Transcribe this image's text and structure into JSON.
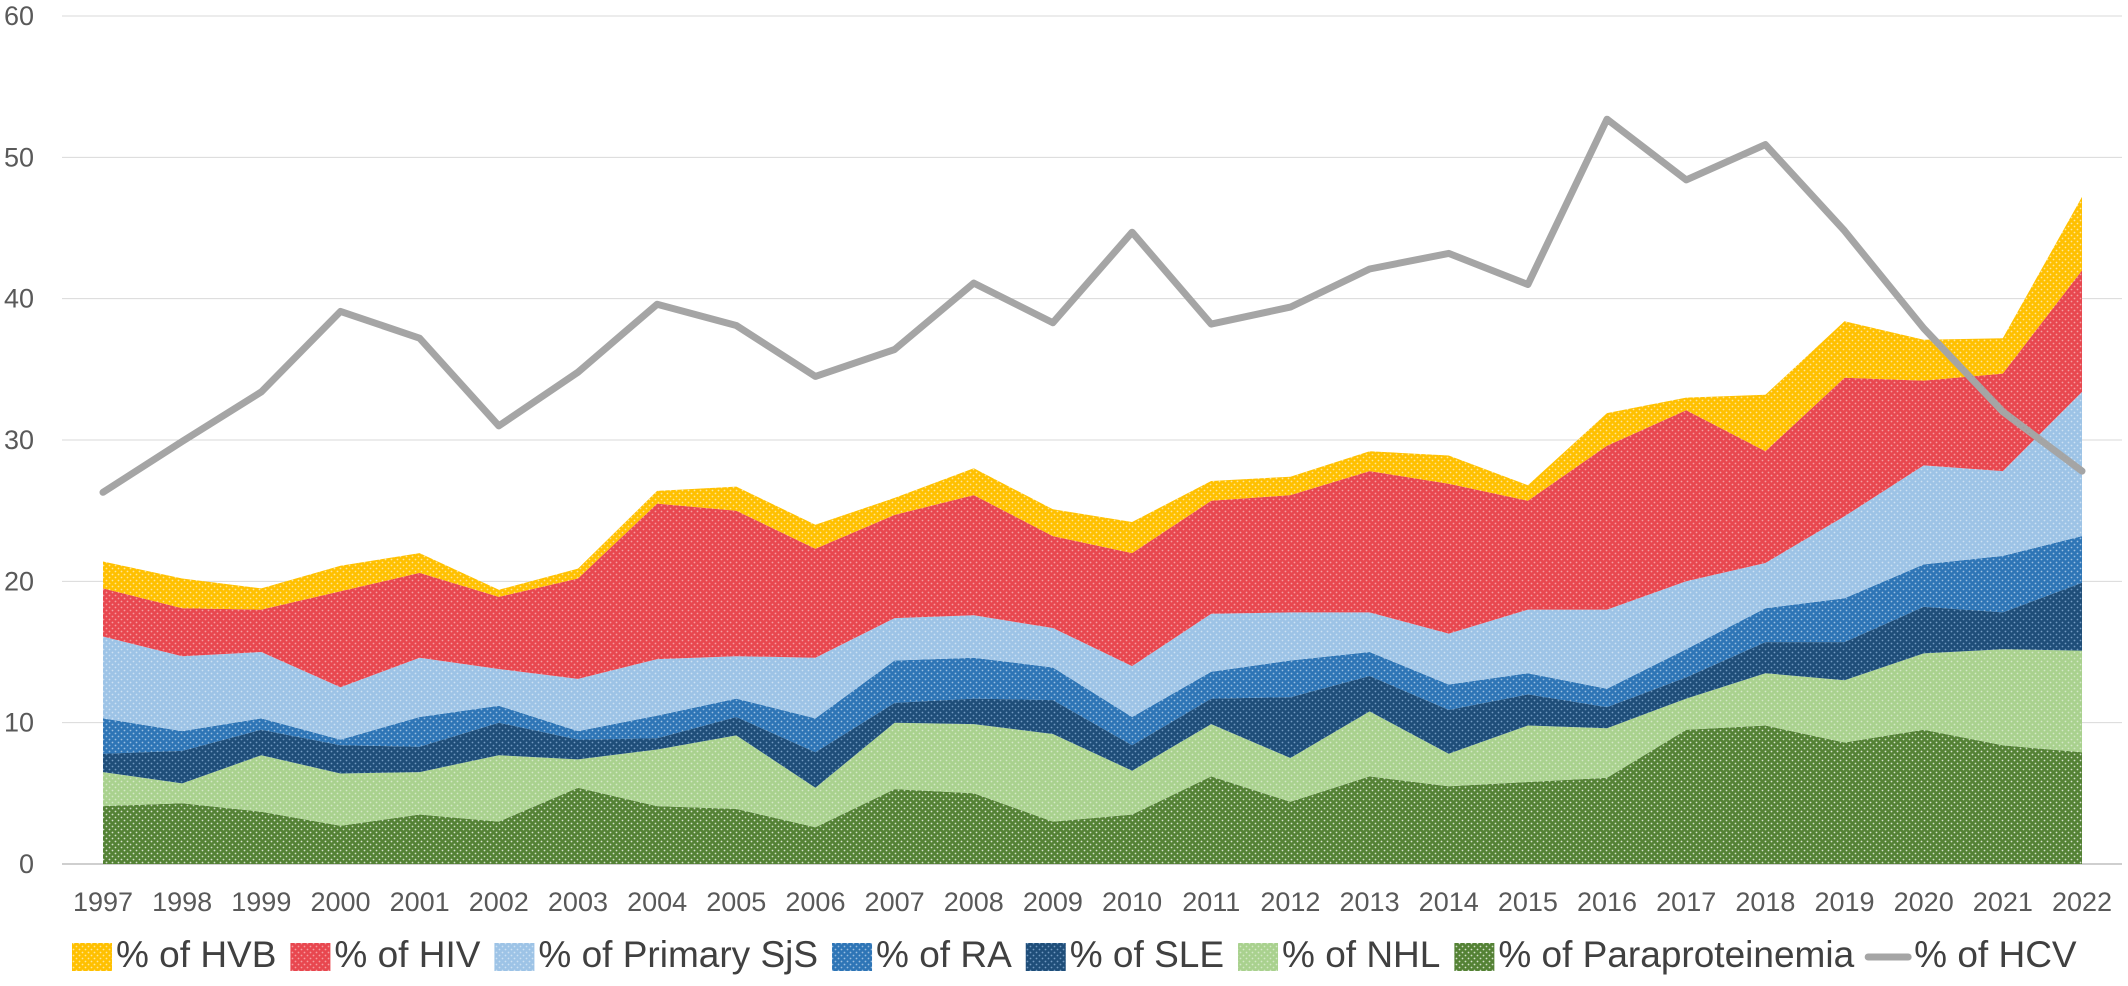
{
  "chart_data": {
    "type": "area",
    "stacked": true,
    "title": "",
    "xlabel": "",
    "ylabel": "",
    "ylim": [
      0,
      60
    ],
    "yticks": [
      0,
      10,
      20,
      30,
      40,
      50,
      60
    ],
    "grid": true,
    "legend_position": "bottom",
    "categories": [
      "1997",
      "1998",
      "1999",
      "2000",
      "2001",
      "2002",
      "2003",
      "2004",
      "2005",
      "2006",
      "2007",
      "2008",
      "2009",
      "2010",
      "2011",
      "2012",
      "2013",
      "2014",
      "2015",
      "2016",
      "2017",
      "2018",
      "2019",
      "2020",
      "2021",
      "2022"
    ],
    "series": [
      {
        "name": "% of Paraproteinemia",
        "color": "#548235",
        "pattern_color": "#ffffff",
        "values": [
          4.1,
          4.3,
          3.7,
          2.7,
          3.5,
          3.0,
          5.4,
          4.1,
          3.9,
          2.6,
          5.3,
          5.0,
          3.0,
          3.5,
          6.2,
          4.4,
          6.2,
          5.5,
          5.8,
          6.1,
          9.5,
          9.8,
          8.6,
          9.5,
          8.4,
          7.9
        ]
      },
      {
        "name": "% of NHL",
        "color": "#a9d18e",
        "pattern_color": "#e2f0d9",
        "values": [
          2.4,
          1.4,
          4.0,
          3.7,
          3.0,
          4.7,
          2.0,
          4.0,
          5.2,
          2.8,
          4.7,
          4.9,
          6.2,
          3.1,
          3.7,
          3.1,
          4.6,
          2.3,
          4.0,
          3.5,
          2.2,
          3.7,
          4.4,
          5.4,
          6.8,
          7.2
        ]
      },
      {
        "name": "% of SLE",
        "color": "#1f4e79",
        "pattern_color": "#8fb2d9",
        "values": [
          1.3,
          2.3,
          1.8,
          2.0,
          1.8,
          2.3,
          1.4,
          0.8,
          1.3,
          2.5,
          1.4,
          1.8,
          2.4,
          1.8,
          1.8,
          4.3,
          2.5,
          3.1,
          2.2,
          1.5,
          1.5,
          2.2,
          2.7,
          3.3,
          2.6,
          4.8
        ]
      },
      {
        "name": "% of RA",
        "color": "#2e75b6",
        "pattern_color": "#bdd7ee",
        "values": [
          2.5,
          1.4,
          0.8,
          0.4,
          2.1,
          1.2,
          0.6,
          1.6,
          1.3,
          2.4,
          3.0,
          2.9,
          2.3,
          2.0,
          1.9,
          2.6,
          1.7,
          1.8,
          1.5,
          1.3,
          2.0,
          2.4,
          3.1,
          3.0,
          4.0,
          3.3
        ]
      },
      {
        "name": "% of Primary SjS",
        "color": "#9dc3e6",
        "pattern_color": "#ddebf7",
        "values": [
          5.8,
          5.3,
          4.7,
          3.7,
          4.2,
          2.6,
          3.7,
          4.0,
          3.0,
          4.3,
          3.0,
          3.0,
          2.8,
          3.6,
          4.1,
          3.4,
          2.8,
          3.6,
          4.5,
          5.6,
          4.8,
          3.2,
          5.8,
          7.0,
          6.0,
          10.2
        ]
      },
      {
        "name": "% of HIV",
        "color": "#e8474f",
        "pattern_color": "#f8b9bc",
        "values": [
          3.4,
          3.4,
          3.0,
          6.8,
          6.0,
          5.1,
          7.1,
          11.0,
          10.3,
          7.7,
          7.3,
          8.5,
          6.5,
          8.0,
          8.0,
          8.3,
          10.0,
          10.6,
          7.7,
          11.6,
          12.1,
          7.9,
          9.8,
          6.0,
          6.9,
          8.6
        ]
      },
      {
        "name": "% of HVB",
        "color": "#ffc000",
        "pattern_color": "#fff2cc",
        "values": [
          1.9,
          2.1,
          1.5,
          1.8,
          1.4,
          0.5,
          0.7,
          0.9,
          1.7,
          1.7,
          1.2,
          1.9,
          1.9,
          2.2,
          1.4,
          1.3,
          1.4,
          2.0,
          1.1,
          2.3,
          0.9,
          4.0,
          4.0,
          2.9,
          2.5,
          5.2
        ]
      }
    ],
    "line_series": [
      {
        "name": "% of HCV",
        "color": "#a5a5a5",
        "values": [
          26.3,
          29.9,
          33.4,
          39.1,
          37.2,
          31.0,
          34.8,
          39.6,
          38.1,
          34.5,
          36.4,
          41.1,
          38.3,
          44.7,
          38.2,
          39.4,
          42.1,
          43.2,
          41.0,
          52.7,
          48.4,
          50.9,
          44.8,
          37.9,
          32.0,
          27.8
        ]
      }
    ],
    "legend_order": [
      "% of HVB",
      "% of HIV",
      "% of Primary SjS",
      "% of RA",
      "% of SLE",
      "% of NHL",
      "% of Paraproteinemia",
      "% of HCV"
    ]
  }
}
